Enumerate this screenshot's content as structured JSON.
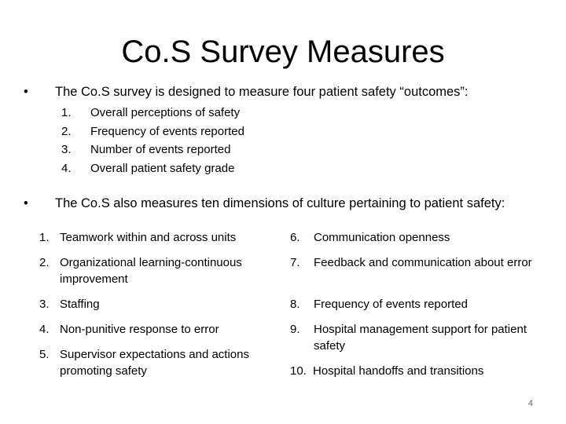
{
  "slide": {
    "title": "Co.S Survey Measures",
    "bullet_glyph": "•",
    "bullet1": "The Co.S survey is designed to measure four patient safety “outcomes”:",
    "outcomes": [
      {
        "num": "1.",
        "text": "Overall perceptions of safety"
      },
      {
        "num": "2.",
        "text": "Frequency of events reported"
      },
      {
        "num": "3.",
        "text": "Number of events reported"
      },
      {
        "num": "4.",
        "text": "Overall patient safety grade"
      }
    ],
    "bullet2": "The Co.S also measures ten dimensions of culture pertaining to patient safety:",
    "dimensions_left": [
      {
        "num": "1.",
        "text": "Teamwork within and across units"
      },
      {
        "num": "2.",
        "text": "Organizational learning-continuous improvement"
      },
      {
        "num": "3.",
        "text": "Staffing"
      },
      {
        "num": "4.",
        "text": "Non-punitive response to error"
      },
      {
        "num": "5.",
        "text": "Supervisor expectations and actions promoting safety"
      }
    ],
    "dimensions_right": [
      {
        "num": "6.",
        "text": "Communication openness"
      },
      {
        "num": "7.",
        "text": "Feedback and communication about error"
      },
      {
        "num": "8.",
        "text": "Frequency of events reported"
      },
      {
        "num": "9.",
        "text": "Hospital management support for patient safety"
      },
      {
        "num": "10.",
        "text": "Hospital handoffs and transitions"
      }
    ],
    "page_number": "4"
  }
}
